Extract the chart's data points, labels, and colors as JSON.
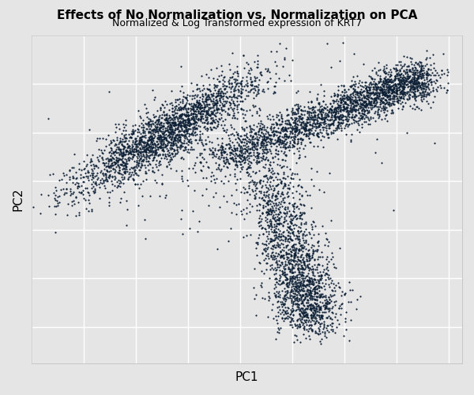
{
  "title": "Effects of No Normalization vs. Normalization on PCA",
  "subtitle": "Normalized & Log Transformed expression of KRT7",
  "xlabel": "PC1",
  "ylabel": "PC2",
  "title_fontsize": 11,
  "subtitle_fontsize": 9,
  "axis_label_fontsize": 11,
  "point_color": "#0d2035",
  "point_size": 2.5,
  "point_alpha": 1.0,
  "background_color": "#e5e5e5",
  "grid_color": "#ffffff",
  "n_points": 6000,
  "seed": 123
}
